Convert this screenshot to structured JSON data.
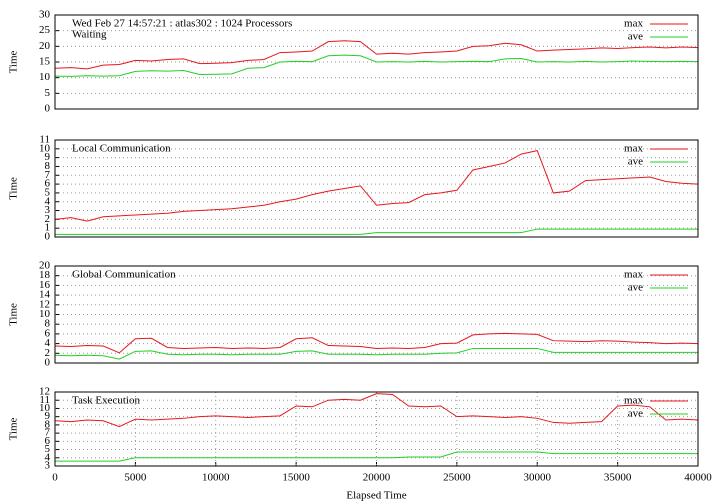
{
  "chart_data": [
    {
      "type": "line",
      "annotation": "Wed Feb 27 14:57:21 : atlas302 : 1024 Processors",
      "title": "Waiting",
      "ylabel": "Time",
      "x": [
        0,
        1000,
        2000,
        3000,
        4000,
        5000,
        6000,
        7000,
        8000,
        9000,
        10000,
        11000,
        12000,
        13000,
        14000,
        15000,
        16000,
        17000,
        18000,
        19000,
        20000,
        21000,
        22000,
        23000,
        24000,
        25000,
        26000,
        27000,
        28000,
        29000,
        30000,
        31000,
        32000,
        33000,
        34000,
        35000,
        36000,
        37000,
        38000,
        39000,
        40000
      ],
      "series": [
        {
          "name": "max",
          "color": "#e8161e",
          "values": [
            13,
            13.2,
            12.8,
            14,
            14.2,
            15.5,
            15.3,
            15.8,
            16,
            14.5,
            14.6,
            14.8,
            15.5,
            15.8,
            18,
            18.2,
            18.5,
            21.5,
            21.8,
            21.5,
            17.5,
            17.8,
            17.5,
            18,
            18.2,
            18.5,
            20,
            20.2,
            21,
            20.5,
            18.5,
            18.8,
            19,
            19.2,
            19.5,
            19.3,
            19.6,
            19.8,
            19.5,
            19.8,
            19.6
          ]
        },
        {
          "name": "ave",
          "color": "#22d022",
          "values": [
            10.5,
            10.4,
            10.6,
            10.5,
            10.6,
            12,
            12.2,
            12.1,
            12.3,
            11,
            11.1,
            11.2,
            13,
            13.2,
            15,
            15.2,
            15.1,
            17,
            17.2,
            17,
            15,
            15.1,
            15,
            15.2,
            15,
            15.1,
            15.2,
            15.1,
            16,
            16.1,
            15,
            15.1,
            15,
            15.2,
            15,
            15.1,
            15.3,
            15.2,
            15.1,
            15.2,
            15.1
          ]
        }
      ],
      "xlim": [
        0,
        40000
      ],
      "ylim": [
        0,
        30
      ],
      "yticks": [
        0,
        5,
        10,
        15,
        20,
        25,
        30
      ],
      "grid": "y",
      "legend": "upper right"
    },
    {
      "type": "line",
      "title": "Local Communication",
      "ylabel": "Time",
      "x": [
        0,
        1000,
        2000,
        3000,
        4000,
        5000,
        6000,
        7000,
        8000,
        9000,
        10000,
        11000,
        12000,
        13000,
        14000,
        15000,
        16000,
        17000,
        18000,
        19000,
        20000,
        21000,
        22000,
        23000,
        24000,
        25000,
        26000,
        27000,
        28000,
        29000,
        30000,
        31000,
        32000,
        33000,
        34000,
        35000,
        36000,
        37000,
        38000,
        39000,
        40000
      ],
      "series": [
        {
          "name": "max",
          "color": "#e8161e",
          "values": [
            2,
            2.2,
            1.8,
            2.3,
            2.4,
            2.5,
            2.6,
            2.7,
            2.9,
            3,
            3.1,
            3.2,
            3.4,
            3.6,
            4,
            4.3,
            4.8,
            5.2,
            5.5,
            5.8,
            3.6,
            3.8,
            3.9,
            4.8,
            5,
            5.3,
            7.6,
            8,
            8.4,
            9.4,
            9.8,
            5,
            5.2,
            6.4,
            6.5,
            6.6,
            6.7,
            6.8,
            6.3,
            6.1,
            6
          ]
        },
        {
          "name": "ave",
          "color": "#22d022",
          "values": [
            0.3,
            0.3,
            0.3,
            0.3,
            0.3,
            0.3,
            0.3,
            0.3,
            0.3,
            0.3,
            0.3,
            0.3,
            0.3,
            0.3,
            0.3,
            0.3,
            0.3,
            0.3,
            0.3,
            0.3,
            0.5,
            0.5,
            0.5,
            0.5,
            0.5,
            0.5,
            0.5,
            0.5,
            0.5,
            0.5,
            0.9,
            0.9,
            0.9,
            0.9,
            0.9,
            0.9,
            0.9,
            0.9,
            0.9,
            0.9,
            0.9
          ]
        }
      ],
      "xlim": [
        0,
        40000
      ],
      "ylim": [
        0,
        11
      ],
      "yticks": [
        0,
        1,
        2,
        3,
        4,
        5,
        6,
        7,
        8,
        9,
        10,
        11
      ],
      "grid": "y",
      "legend": "upper right"
    },
    {
      "type": "line",
      "title": "Global Communication",
      "ylabel": "Time",
      "x": [
        0,
        1000,
        2000,
        3000,
        4000,
        5000,
        6000,
        7000,
        8000,
        9000,
        10000,
        11000,
        12000,
        13000,
        14000,
        15000,
        16000,
        17000,
        18000,
        19000,
        20000,
        21000,
        22000,
        23000,
        24000,
        25000,
        26000,
        27000,
        28000,
        29000,
        30000,
        31000,
        32000,
        33000,
        34000,
        35000,
        36000,
        37000,
        38000,
        39000,
        40000
      ],
      "series": [
        {
          "name": "max",
          "color": "#e8161e",
          "values": [
            3.5,
            3.4,
            3.6,
            3.5,
            2.1,
            5,
            5.1,
            3.2,
            3,
            3.1,
            3.2,
            3,
            3.1,
            3,
            3.2,
            5,
            5.2,
            3.6,
            3.5,
            3.4,
            3,
            3.1,
            3,
            3.2,
            4,
            4.1,
            5.8,
            6,
            6.1,
            6,
            5.9,
            4.6,
            4.5,
            4.4,
            4.6,
            4.5,
            4.3,
            4.2,
            4,
            4.1,
            4
          ]
        },
        {
          "name": "ave",
          "color": "#22d022",
          "values": [
            1.6,
            1.5,
            1.6,
            1.5,
            0.8,
            2.4,
            2.5,
            1.8,
            1.7,
            1.8,
            1.8,
            1.7,
            1.8,
            1.8,
            1.8,
            2.4,
            2.5,
            1.8,
            1.8,
            1.8,
            1.7,
            1.8,
            1.8,
            1.8,
            2,
            2.1,
            3,
            3,
            3,
            3,
            3,
            2.2,
            2.2,
            2.2,
            2.2,
            2.2,
            2.2,
            2.2,
            2.2,
            2.2,
            2.2
          ]
        }
      ],
      "xlim": [
        0,
        40000
      ],
      "ylim": [
        0,
        20
      ],
      "yticks": [
        0,
        2,
        4,
        6,
        8,
        10,
        12,
        14,
        16,
        18,
        20
      ],
      "grid": "y",
      "legend": "upper right"
    },
    {
      "type": "line",
      "title": "Task Execution",
      "ylabel": "Time",
      "xlabel": "Elapsed Time",
      "x": [
        0,
        1000,
        2000,
        3000,
        4000,
        5000,
        6000,
        7000,
        8000,
        9000,
        10000,
        11000,
        12000,
        13000,
        14000,
        15000,
        16000,
        17000,
        18000,
        19000,
        20000,
        21000,
        22000,
        23000,
        24000,
        25000,
        26000,
        27000,
        28000,
        29000,
        30000,
        31000,
        32000,
        33000,
        34000,
        35000,
        36000,
        37000,
        38000,
        39000,
        40000
      ],
      "series": [
        {
          "name": "max",
          "color": "#e8161e",
          "values": [
            8.5,
            8.4,
            8.6,
            8.5,
            7.8,
            8.7,
            8.6,
            8.7,
            8.8,
            9,
            9.1,
            9,
            8.9,
            9,
            9.1,
            10.3,
            10.2,
            11,
            11.1,
            11,
            11.8,
            11.7,
            10.3,
            10.2,
            10.3,
            9,
            9.1,
            9,
            8.9,
            9,
            8.8,
            8.3,
            8.2,
            8.3,
            8.4,
            10.3,
            10.4,
            10.2,
            8.6,
            8.7,
            8.6
          ]
        },
        {
          "name": "ave",
          "color": "#22d022",
          "values": [
            3.6,
            3.6,
            3.6,
            3.6,
            3.6,
            4,
            4,
            4,
            4,
            4,
            4,
            4,
            4,
            4,
            4,
            4,
            4,
            4,
            4,
            4,
            4,
            4,
            4.1,
            4.1,
            4.1,
            4.7,
            4.7,
            4.7,
            4.7,
            4.7,
            4.7,
            4.5,
            4.5,
            4.5,
            4.5,
            4.5,
            4.5,
            4.5,
            4.5,
            4.5,
            4.5
          ]
        }
      ],
      "xlim": [
        0,
        40000
      ],
      "ylim": [
        3,
        12
      ],
      "yticks": [
        3,
        4,
        5,
        6,
        7,
        8,
        9,
        10,
        11,
        12
      ],
      "xticks": [
        0,
        5000,
        10000,
        15000,
        20000,
        25000,
        30000,
        35000,
        40000
      ],
      "grid": "both",
      "legend": "upper right"
    }
  ]
}
